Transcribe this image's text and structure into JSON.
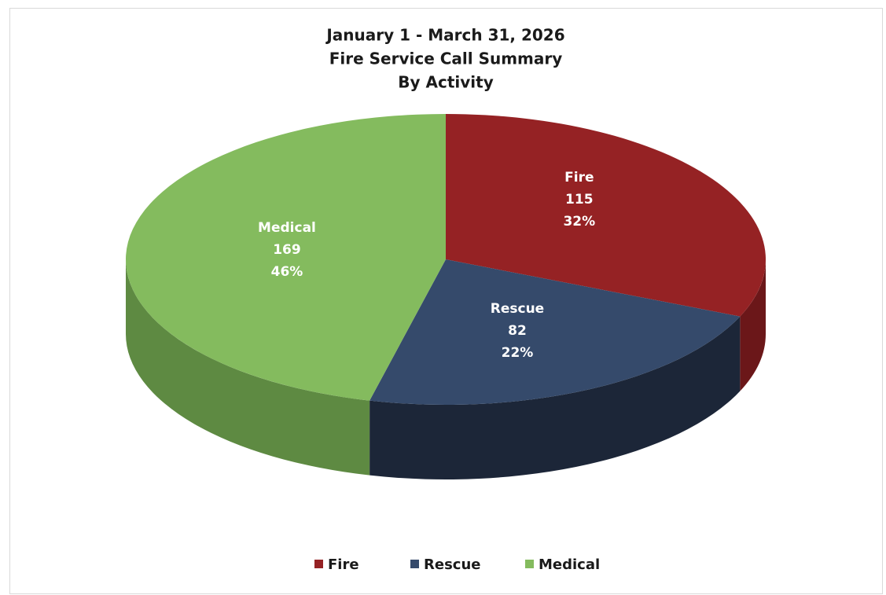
{
  "chart_data": {
    "type": "pie3d",
    "title": [
      "January 1 - March 31, 2026",
      "Fire Service Call Summary",
      "By Activity"
    ],
    "categories": [
      "Fire",
      "Rescue",
      "Medical"
    ],
    "values": [
      115,
      82,
      169
    ],
    "percent_labels": [
      "32%",
      "22%",
      "46%"
    ],
    "colors": [
      "#952224",
      "#354a6b",
      "#84bb5e"
    ],
    "side_colors": [
      "#6b1719",
      "#1c2638",
      "#5e8a42"
    ],
    "legend": "bottom"
  }
}
